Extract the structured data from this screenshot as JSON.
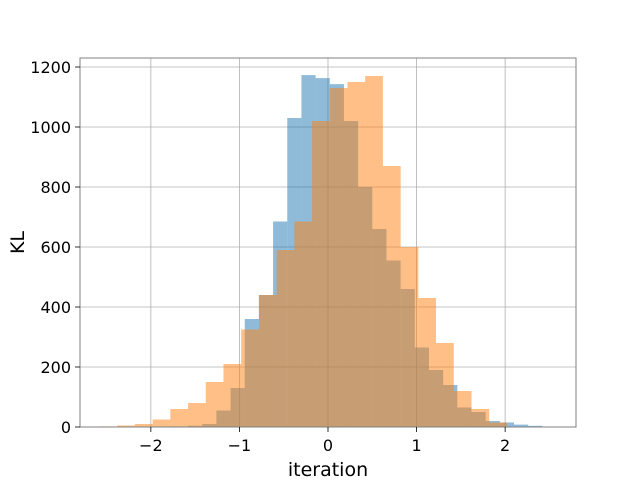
{
  "chart_data": {
    "type": "bar",
    "subtype": "overlapping-histogram",
    "title": "",
    "xlabel": "iteration",
    "ylabel": "KL",
    "xlim": [
      -2.8,
      2.8
    ],
    "ylim": [
      0,
      1230
    ],
    "grid": true,
    "legend": "none",
    "x_ticks": [
      -2,
      -1,
      0,
      1,
      2
    ],
    "x_tick_labels": [
      "−2",
      "−1",
      "0",
      "1",
      "2"
    ],
    "y_ticks": [
      0,
      200,
      400,
      600,
      800,
      1000,
      1200
    ],
    "y_tick_labels": [
      "0",
      "200",
      "400",
      "600",
      "800",
      "1000",
      "1200"
    ],
    "series": [
      {
        "color": "#1f77b4",
        "bins": [
          {
            "x0": -1.75,
            "x1": -1.58,
            "value": 2
          },
          {
            "x0": -1.58,
            "x1": -1.42,
            "value": 4
          },
          {
            "x0": -1.42,
            "x1": -1.26,
            "value": 10
          },
          {
            "x0": -1.26,
            "x1": -1.1,
            "value": 55
          },
          {
            "x0": -1.1,
            "x1": -0.94,
            "value": 130
          },
          {
            "x0": -0.94,
            "x1": -0.78,
            "value": 360
          },
          {
            "x0": -0.78,
            "x1": -0.62,
            "value": 440
          },
          {
            "x0": -0.62,
            "x1": -0.46,
            "value": 685
          },
          {
            "x0": -0.46,
            "x1": -0.3,
            "value": 1030
          },
          {
            "x0": -0.3,
            "x1": -0.14,
            "value": 1173
          },
          {
            "x0": -0.14,
            "x1": 0.02,
            "value": 1163
          },
          {
            "x0": 0.02,
            "x1": 0.18,
            "value": 1143
          },
          {
            "x0": 0.18,
            "x1": 0.34,
            "value": 1020
          },
          {
            "x0": 0.34,
            "x1": 0.5,
            "value": 800
          },
          {
            "x0": 0.5,
            "x1": 0.66,
            "value": 660
          },
          {
            "x0": 0.66,
            "x1": 0.82,
            "value": 555
          },
          {
            "x0": 0.82,
            "x1": 0.98,
            "value": 460
          },
          {
            "x0": 0.98,
            "x1": 1.14,
            "value": 265
          },
          {
            "x0": 1.14,
            "x1": 1.3,
            "value": 190
          },
          {
            "x0": 1.3,
            "x1": 1.46,
            "value": 140
          },
          {
            "x0": 1.46,
            "x1": 1.62,
            "value": 65
          },
          {
            "x0": 1.62,
            "x1": 1.78,
            "value": 50
          },
          {
            "x0": 1.78,
            "x1": 1.94,
            "value": 20
          },
          {
            "x0": 1.94,
            "x1": 2.1,
            "value": 15
          },
          {
            "x0": 2.1,
            "x1": 2.26,
            "value": 8
          },
          {
            "x0": 2.26,
            "x1": 2.42,
            "value": 4
          }
        ]
      },
      {
        "color": "#ff7f0e",
        "bins": [
          {
            "x0": -2.58,
            "x1": -2.38,
            "value": 2
          },
          {
            "x0": -2.38,
            "x1": -2.18,
            "value": 5
          },
          {
            "x0": -2.18,
            "x1": -1.98,
            "value": 10
          },
          {
            "x0": -1.98,
            "x1": -1.78,
            "value": 25
          },
          {
            "x0": -1.78,
            "x1": -1.58,
            "value": 60
          },
          {
            "x0": -1.58,
            "x1": -1.38,
            "value": 80
          },
          {
            "x0": -1.38,
            "x1": -1.18,
            "value": 150
          },
          {
            "x0": -1.18,
            "x1": -0.98,
            "value": 210
          },
          {
            "x0": -0.98,
            "x1": -0.78,
            "value": 325
          },
          {
            "x0": -0.78,
            "x1": -0.58,
            "value": 440
          },
          {
            "x0": -0.58,
            "x1": -0.38,
            "value": 590
          },
          {
            "x0": -0.38,
            "x1": -0.18,
            "value": 685
          },
          {
            "x0": -0.18,
            "x1": 0.02,
            "value": 1020
          },
          {
            "x0": 0.02,
            "x1": 0.22,
            "value": 1130
          },
          {
            "x0": 0.22,
            "x1": 0.42,
            "value": 1150
          },
          {
            "x0": 0.42,
            "x1": 0.62,
            "value": 1170
          },
          {
            "x0": 0.62,
            "x1": 0.82,
            "value": 870
          },
          {
            "x0": 0.82,
            "x1": 1.02,
            "value": 600
          },
          {
            "x0": 1.02,
            "x1": 1.22,
            "value": 430
          },
          {
            "x0": 1.22,
            "x1": 1.42,
            "value": 280
          },
          {
            "x0": 1.42,
            "x1": 1.62,
            "value": 120
          },
          {
            "x0": 1.62,
            "x1": 1.82,
            "value": 60
          },
          {
            "x0": 1.82,
            "x1": 2.02,
            "value": 15
          }
        ]
      }
    ]
  }
}
